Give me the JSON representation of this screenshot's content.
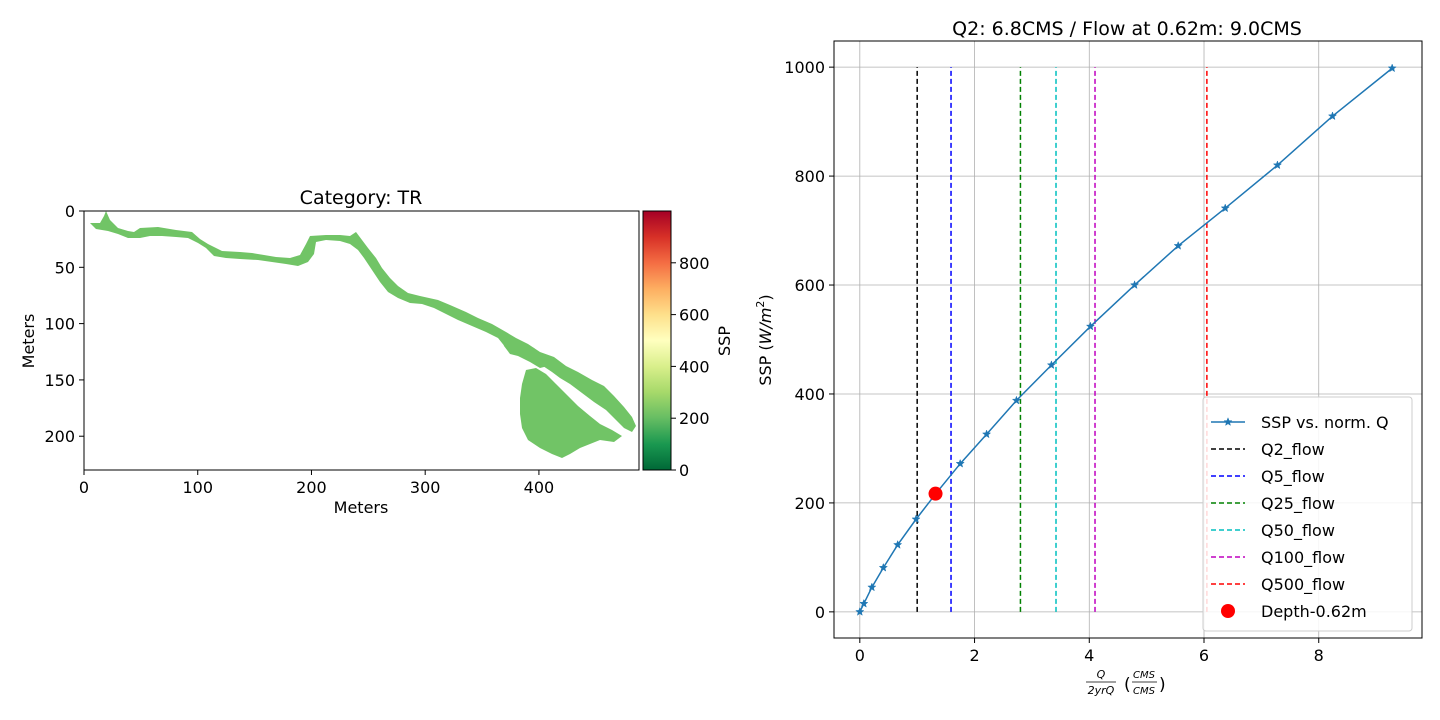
{
  "colors": {
    "region_fill": "#71c466",
    "series_line": "#1f77b4",
    "marker": "#ff0000",
    "grid": "#b0b0b0",
    "colormap_stops": [
      "#006837",
      "#1a9850",
      "#66bd63",
      "#a6d96a",
      "#d9ef8b",
      "#ffffbf",
      "#fee08b",
      "#fdae61",
      "#f46d43",
      "#d73027",
      "#a50026"
    ]
  },
  "chart_data": [
    {
      "type": "heatmap",
      "title": "Category: TR",
      "xlabel": "Meters",
      "ylabel": "Meters",
      "xlim": [
        0,
        488
      ],
      "ylim": [
        230,
        0
      ],
      "x_ticks": [
        0,
        100,
        200,
        300,
        400
      ],
      "y_ticks": [
        0,
        50,
        100,
        150,
        200
      ],
      "colorbar": {
        "label": "SSP",
        "range": [
          0,
          1000
        ],
        "ticks": [
          0,
          200,
          400,
          600,
          800
        ]
      },
      "region_value": 190
    },
    {
      "type": "line",
      "title": "Q2: 6.8CMS / Flow at 0.62m: 9.0CMS",
      "xlabel": "Q/2yrQ (CMS/CMS)",
      "xlabel_parts": {
        "num": "Q",
        "den": "2yrQ",
        "unit_num": "CMS",
        "unit_den": "CMS"
      },
      "ylabel": "SSP (W/m²)",
      "ylabel_parts": {
        "prefix": "SSP (",
        "var": "W/m",
        "sup": "2",
        "suffix": ")"
      },
      "xlim": [
        -0.45,
        9.8
      ],
      "ylim": [
        -48,
        1048
      ],
      "x_ticks": [
        0,
        2,
        4,
        6,
        8
      ],
      "y_ticks": [
        0,
        200,
        400,
        600,
        800,
        1000
      ],
      "grid": true,
      "legend_position": "lower-right",
      "series": [
        {
          "name": "SSP vs. norm. Q",
          "x": [
            0,
            0.07,
            0.21,
            0.41,
            0.66,
            0.98,
            1.34,
            1.75,
            2.21,
            2.73,
            3.34,
            4.02,
            4.79,
            5.55,
            6.37,
            7.28,
            8.24,
            9.28
          ],
          "y": [
            0,
            15,
            45,
            81,
            123,
            170,
            219,
            272,
            326,
            388,
            453,
            524,
            600,
            672,
            741,
            820,
            910,
            998
          ]
        }
      ],
      "reference_lines": [
        {
          "name": "Q2_flow",
          "x": 1.0,
          "color": "#000000"
        },
        {
          "name": "Q5_flow",
          "x": 1.59,
          "color": "#0000ff"
        },
        {
          "name": "Q25_flow",
          "x": 2.8,
          "color": "#008000"
        },
        {
          "name": "Q50_flow",
          "x": 3.42,
          "color": "#00bfbf"
        },
        {
          "name": "Q100_flow",
          "x": 4.1,
          "color": "#bf00bf"
        },
        {
          "name": "Q500_flow",
          "x": 6.05,
          "color": "#ff0000"
        }
      ],
      "reference_y_range": [
        0,
        1000
      ],
      "point": {
        "name": "Depth-0.62m",
        "x": 1.32,
        "y": 217
      }
    }
  ]
}
